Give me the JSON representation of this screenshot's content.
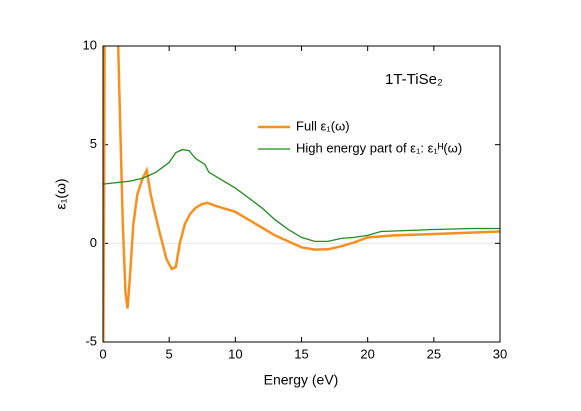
{
  "chart_data": {
    "type": "line",
    "annotation": "1T-TiSe₂",
    "xlabel": "Energy (eV)",
    "ylabel": "ε₁(ω)",
    "xlim": [
      0,
      30
    ],
    "xticks": [
      0,
      5,
      10,
      15,
      20,
      25,
      30
    ],
    "ylim": [
      -5,
      10
    ],
    "yticks": [
      -5,
      0,
      5,
      10
    ],
    "legend": "upper right",
    "series": [
      {
        "name": "Full ε₁(ω)",
        "color": "#f7901e",
        "x": [
          0.02,
          0.08,
          0.12,
          0.6,
          1.15,
          1.3,
          1.5,
          1.7,
          1.85,
          2.0,
          2.3,
          2.6,
          3.0,
          3.3,
          3.6,
          3.9,
          4.3,
          4.8,
          5.2,
          5.5,
          5.8,
          6.2,
          6.6,
          7.0,
          7.5,
          7.9,
          8.5,
          9,
          10,
          11,
          12,
          13,
          14,
          15,
          16,
          17,
          18,
          19,
          20,
          22,
          24,
          26,
          28,
          30
        ],
        "values": [
          -5,
          3,
          10,
          null,
          10,
          6,
          1,
          -2.5,
          -3.3,
          -2,
          1,
          2.5,
          3.3,
          3.7,
          2.5,
          1.6,
          0.5,
          -0.8,
          -1.3,
          -1.2,
          0,
          1,
          1.5,
          1.8,
          2.0,
          2.05,
          1.9,
          1.8,
          1.6,
          1.2,
          0.8,
          0.4,
          0.1,
          -0.2,
          -0.32,
          -0.3,
          -0.15,
          0.05,
          0.3,
          0.4,
          0.45,
          0.5,
          0.55,
          0.6
        ]
      },
      {
        "name": "High energy part of ε₁: ε₁ᴴ(ω)",
        "color": "#1e8c1e",
        "x": [
          0,
          2,
          3,
          4,
          5,
          5.5,
          6,
          6.5,
          7,
          7.7,
          8,
          9,
          10,
          11,
          12,
          13,
          14,
          15,
          16,
          17,
          18,
          19,
          20,
          21,
          23,
          25,
          28,
          30
        ],
        "values": [
          3.0,
          3.15,
          3.3,
          3.6,
          4.1,
          4.6,
          4.75,
          4.7,
          4.3,
          4.0,
          3.6,
          3.2,
          2.8,
          2.3,
          1.8,
          1.2,
          0.7,
          0.3,
          0.1,
          0.1,
          0.25,
          0.3,
          0.4,
          0.6,
          0.65,
          0.7,
          0.75,
          0.75
        ]
      }
    ]
  }
}
